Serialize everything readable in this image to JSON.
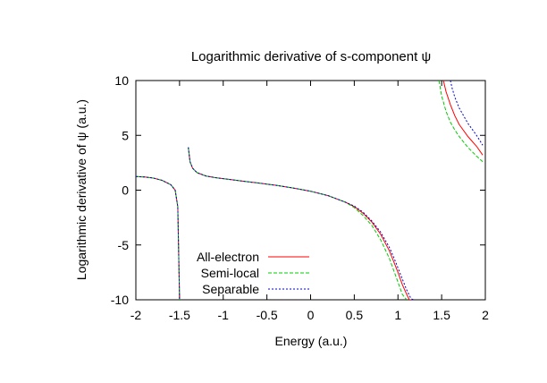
{
  "chart_data": {
    "type": "line",
    "title": "Logarithmic derivative of s-component ψ",
    "xlabel": "Energy (a.u.)",
    "ylabel": "Logarithmic derivative of ψ (a.u.)",
    "xlim": [
      -2,
      2
    ],
    "ylim": [
      -10,
      10
    ],
    "xticks": [
      -2,
      -1.5,
      -1,
      -0.5,
      0,
      0.5,
      1,
      1.5,
      2
    ],
    "xtick_labels": [
      "-2",
      "-1.5",
      "-1",
      "-0.5",
      "0",
      "0.5",
      "1",
      "1.5",
      "2"
    ],
    "yticks": [
      -10,
      -5,
      0,
      5,
      10
    ],
    "ytick_labels": [
      "-10",
      "-5",
      "0",
      "5",
      "10"
    ],
    "grid": false,
    "legend_position": "bottom-left",
    "series": [
      {
        "name": "All-electron",
        "color": "#ff0000",
        "dash": "solid",
        "segments": [
          {
            "x": [
              -2.0,
              -1.9,
              -1.8,
              -1.7,
              -1.6,
              -1.55,
              -1.52,
              -1.5
            ],
            "y": [
              1.25,
              1.2,
              1.1,
              0.9,
              0.5,
              0.0,
              -1.5,
              -10
            ]
          },
          {
            "x": [
              -1.4,
              -1.38,
              -1.35,
              -1.3,
              -1.2,
              -1.1,
              -1.0,
              -0.8,
              -0.6,
              -0.4,
              -0.2,
              0.0,
              0.2,
              0.4,
              0.5,
              0.6,
              0.7,
              0.8,
              0.9,
              0.95,
              1.0,
              1.05,
              1.1,
              1.13,
              1.16
            ],
            "y": [
              3.9,
              2.6,
              2.0,
              1.6,
              1.3,
              1.15,
              1.05,
              0.85,
              0.65,
              0.45,
              0.2,
              -0.1,
              -0.5,
              -1.1,
              -1.5,
              -2.1,
              -2.9,
              -4.0,
              -5.5,
              -6.5,
              -7.5,
              -8.6,
              -9.5,
              -10.0,
              -10.0
            ]
          },
          {
            "x": [
              1.52,
              1.55,
              1.6,
              1.65,
              1.7,
              1.8,
              1.9,
              1.97
            ],
            "y": [
              10.0,
              9.0,
              7.8,
              6.8,
              6.0,
              4.9,
              4.0,
              3.2
            ]
          }
        ]
      },
      {
        "name": "Semi-local",
        "color": "#00cc00",
        "dash": "4,2",
        "segments": [
          {
            "x": [
              -2.0,
              -1.9,
              -1.8,
              -1.7,
              -1.6,
              -1.55,
              -1.52,
              -1.5
            ],
            "y": [
              1.25,
              1.2,
              1.1,
              0.9,
              0.5,
              0.0,
              -1.5,
              -10
            ]
          },
          {
            "x": [
              -1.4,
              -1.38,
              -1.35,
              -1.3,
              -1.2,
              -1.1,
              -1.0,
              -0.8,
              -0.6,
              -0.4,
              -0.2,
              0.0,
              0.2,
              0.4,
              0.5,
              0.6,
              0.7,
              0.8,
              0.9,
              0.95,
              1.0,
              1.05,
              1.1
            ],
            "y": [
              3.9,
              2.6,
              2.0,
              1.6,
              1.3,
              1.15,
              1.05,
              0.85,
              0.65,
              0.45,
              0.2,
              -0.1,
              -0.5,
              -1.1,
              -1.6,
              -2.3,
              -3.2,
              -4.5,
              -6.2,
              -7.3,
              -8.4,
              -9.5,
              -10.0
            ]
          },
          {
            "x": [
              1.47,
              1.5,
              1.55,
              1.6,
              1.65,
              1.7,
              1.8,
              1.9,
              1.97
            ],
            "y": [
              10.0,
              8.6,
              7.2,
              6.2,
              5.5,
              4.9,
              3.9,
              3.1,
              2.6
            ]
          }
        ]
      },
      {
        "name": "Separable",
        "color": "#0000cc",
        "dash": "2,2",
        "segments": [
          {
            "x": [
              -2.0,
              -1.9,
              -1.8,
              -1.7,
              -1.6,
              -1.55,
              -1.52,
              -1.5
            ],
            "y": [
              1.25,
              1.2,
              1.1,
              0.9,
              0.5,
              0.0,
              -1.5,
              -10
            ]
          },
          {
            "x": [
              -1.4,
              -1.38,
              -1.35,
              -1.3,
              -1.2,
              -1.1,
              -1.0,
              -0.8,
              -0.6,
              -0.4,
              -0.2,
              0.0,
              0.2,
              0.4,
              0.5,
              0.6,
              0.7,
              0.8,
              0.9,
              0.95,
              1.0,
              1.05,
              1.1,
              1.15,
              1.18
            ],
            "y": [
              3.9,
              2.6,
              2.0,
              1.6,
              1.3,
              1.15,
              1.05,
              0.85,
              0.65,
              0.45,
              0.2,
              -0.1,
              -0.5,
              -1.1,
              -1.45,
              -2.0,
              -2.8,
              -3.8,
              -5.2,
              -6.1,
              -7.1,
              -8.1,
              -9.1,
              -9.9,
              -10.0
            ]
          },
          {
            "x": [
              1.6,
              1.62,
              1.65,
              1.7,
              1.75,
              1.8,
              1.9,
              1.97
            ],
            "y": [
              10.0,
              9.3,
              8.5,
              7.5,
              6.8,
              6.1,
              5.0,
              4.1
            ]
          }
        ]
      }
    ]
  }
}
